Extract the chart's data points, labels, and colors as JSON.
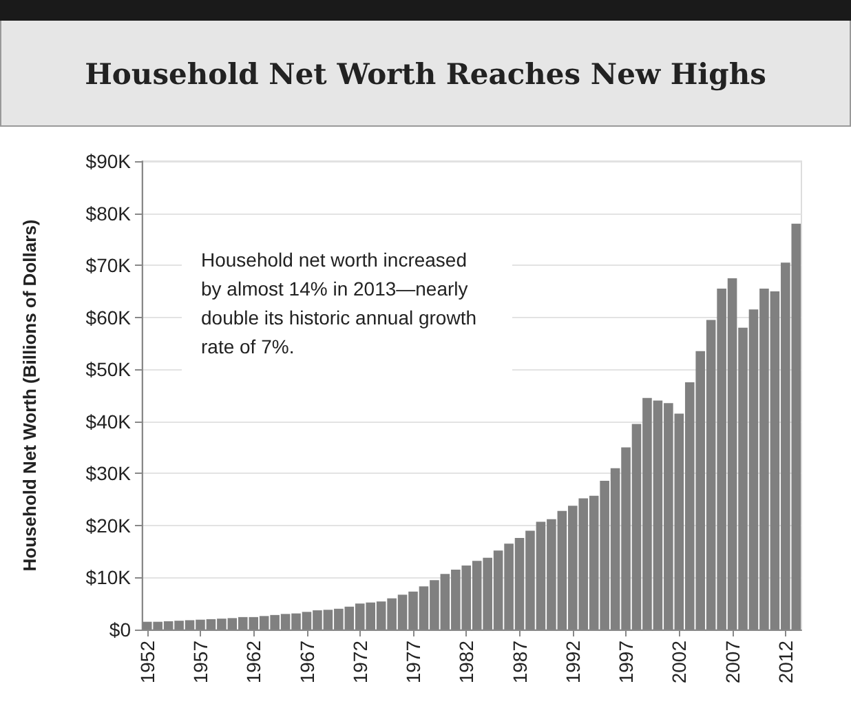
{
  "chart_data": {
    "type": "bar",
    "title": "Household Net Worth Reaches New Highs",
    "ylabel": "Household Net Worth (Billions of Dollars)",
    "annotations": [
      "Household net worth increased by almost 14% in 2013—nearly double its historic annual growth rate of 7%."
    ],
    "categories": [
      "1952",
      null,
      null,
      null,
      null,
      "1957",
      null,
      null,
      null,
      null,
      "1962",
      null,
      null,
      null,
      null,
      "1967",
      null,
      null,
      null,
      null,
      "1972",
      null,
      null,
      null,
      null,
      "1977",
      null,
      null,
      null,
      null,
      "1982",
      null,
      null,
      null,
      null,
      "1987",
      null,
      null,
      null,
      null,
      "1992",
      null,
      null,
      null,
      null,
      "1997",
      null,
      null,
      null,
      null,
      "2002",
      null,
      null,
      null,
      null,
      "2007",
      null,
      null,
      null,
      null,
      "2012",
      null
    ],
    "values": [
      1.5,
      1.5,
      1.6,
      1.7,
      1.8,
      1.9,
      2.0,
      2.1,
      2.2,
      2.4,
      2.4,
      2.6,
      2.8,
      3.0,
      3.1,
      3.4,
      3.7,
      3.8,
      4.0,
      4.4,
      5.0,
      5.2,
      5.4,
      6.0,
      6.7,
      7.3,
      8.3,
      9.5,
      10.7,
      11.5,
      12.3,
      13.2,
      13.8,
      15.2,
      16.5,
      17.6,
      19.0,
      20.7,
      21.2,
      22.8,
      23.8,
      25.2,
      25.7,
      28.6,
      31.0,
      35.0,
      39.5,
      44.5,
      44.0,
      43.5,
      41.5,
      47.5,
      53.5,
      59.5,
      65.5,
      67.5,
      58.0,
      61.5,
      65.5,
      65.0,
      70.5,
      78.0
    ],
    "color": "#808080",
    "ylim": [
      0,
      90
    ],
    "yticks": [
      {
        "value": 0,
        "label": "$0"
      },
      {
        "value": 10,
        "label": "$10K"
      },
      {
        "value": 20,
        "label": "$20K"
      },
      {
        "value": 30,
        "label": "$30K"
      },
      {
        "value": 40,
        "label": "$40K"
      },
      {
        "value": 50,
        "label": "$50K"
      },
      {
        "value": 60,
        "label": "$60K"
      },
      {
        "value": 70,
        "label": "$70K"
      },
      {
        "value": 80,
        "label": "$80K"
      },
      {
        "value": 90,
        "label": "$90K"
      }
    ],
    "grid": "y"
  }
}
